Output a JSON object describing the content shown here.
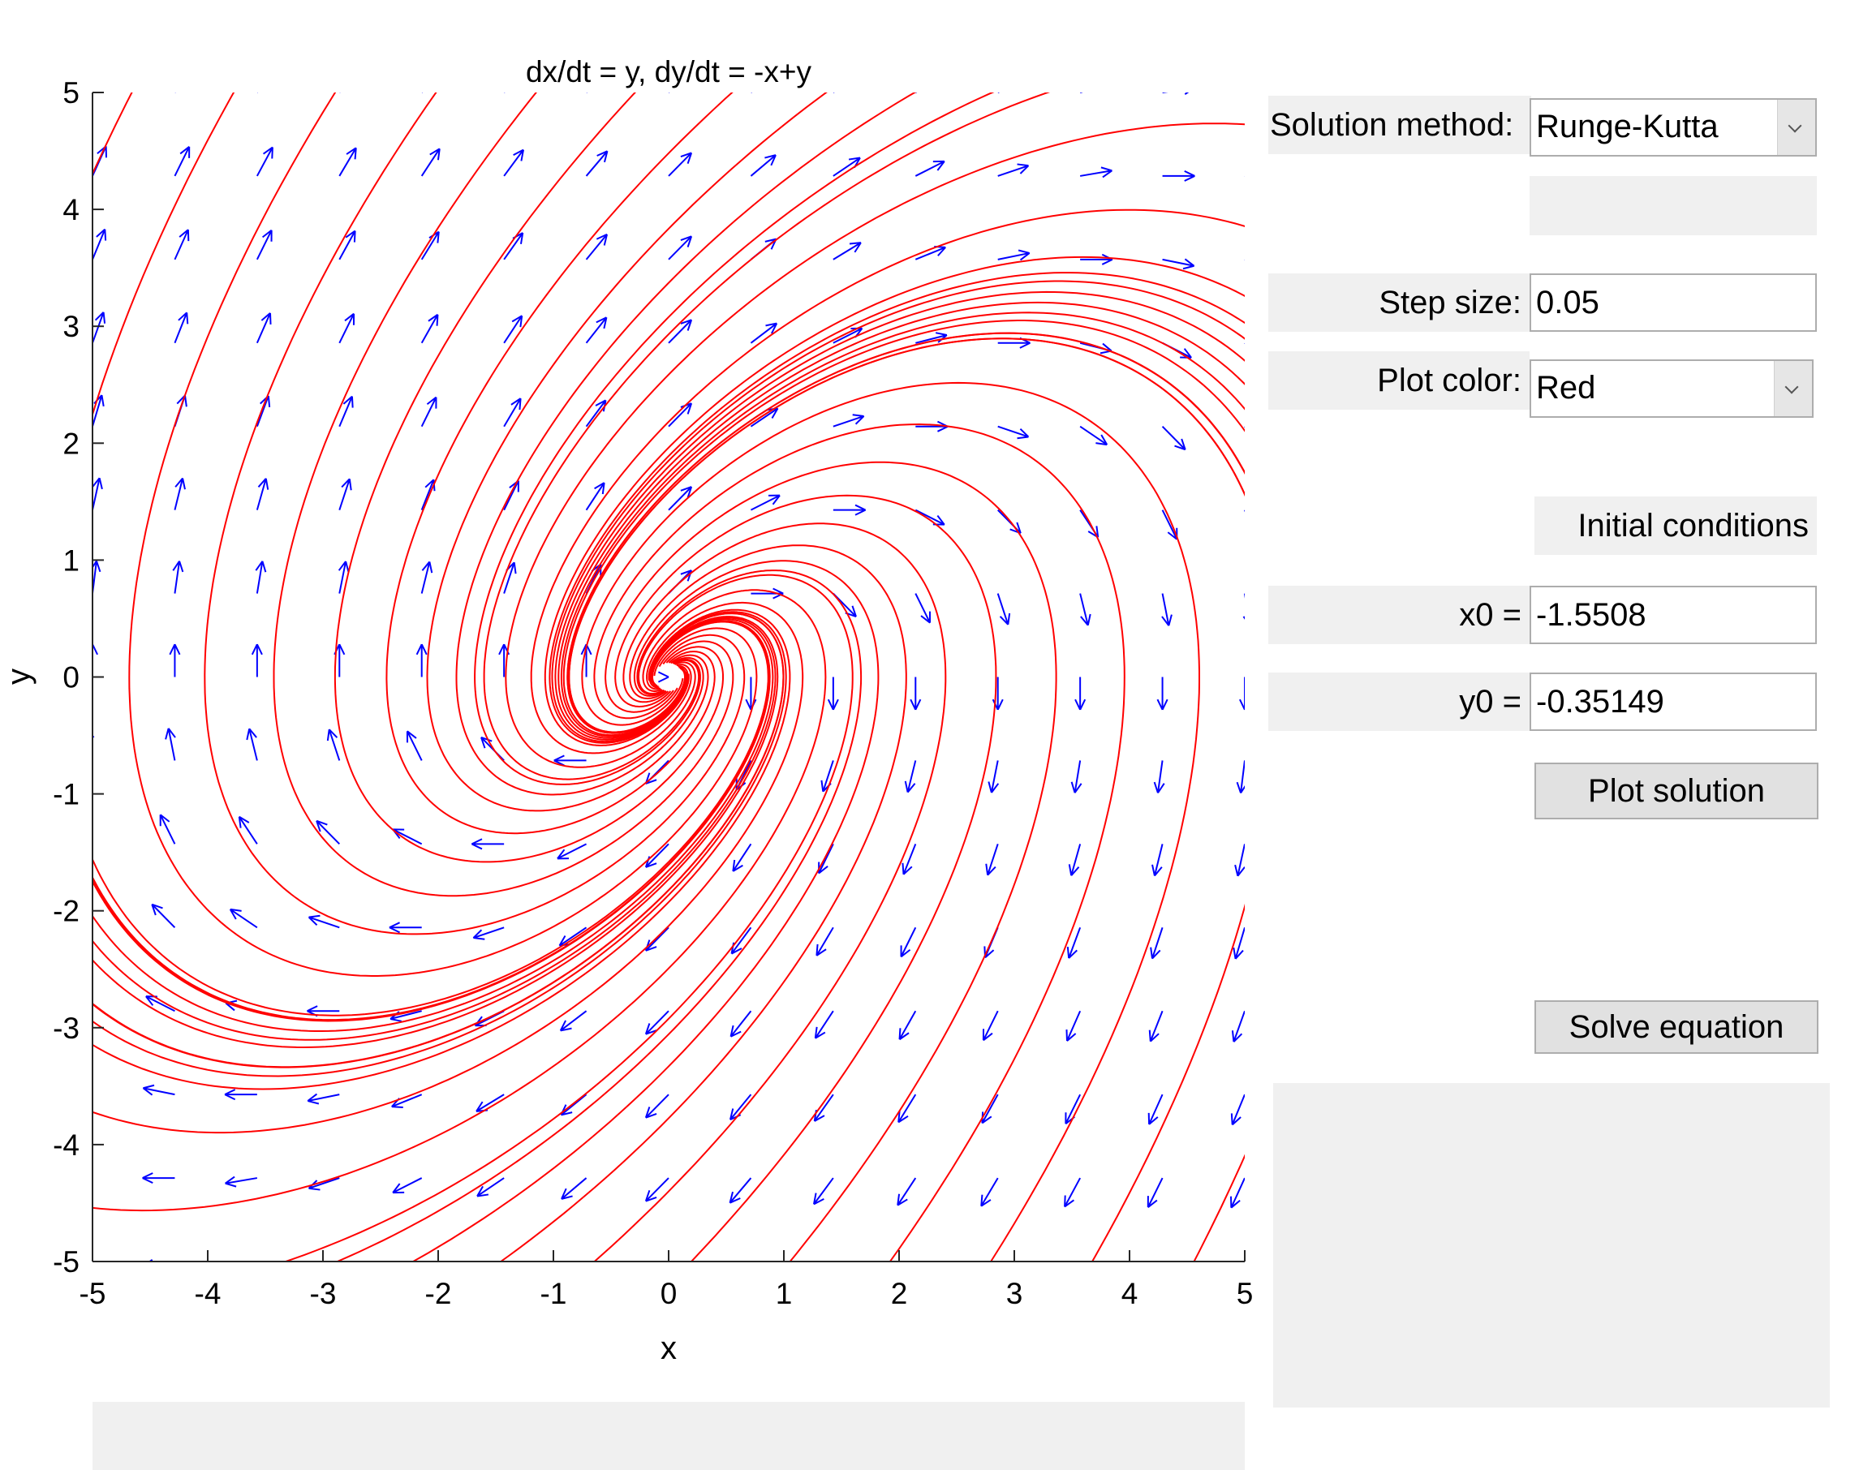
{
  "plot": {
    "title": "dx/dt = y, dy/dt = -x+y",
    "xlabel": "x",
    "ylabel": "y",
    "xlim": [
      -5,
      5
    ],
    "ylim": [
      -5,
      5
    ],
    "xticks": [
      "-5",
      "-4",
      "-3",
      "-2",
      "-1",
      "0",
      "1",
      "2",
      "3",
      "4",
      "5"
    ],
    "yticks": [
      "5",
      "4",
      "3",
      "2",
      "1",
      "0",
      "-1",
      "-2",
      "-3",
      "-4",
      "-5"
    ],
    "field_color": "#0000ff",
    "curve_color": "#ff0000"
  },
  "chart_data": {
    "type": "line",
    "title": "dx/dt = y, dy/dt = -x+y",
    "xlabel": "x",
    "ylabel": "y",
    "xlim": [
      -5,
      5
    ],
    "ylim": [
      -5,
      5
    ],
    "grid": false
  },
  "controls": {
    "method_label": "Solution method:",
    "method_value": "Runge-Kutta",
    "step_label": "Step size:",
    "step_value": "0.05",
    "color_label": "Plot color:",
    "color_value": "Red",
    "ic_label": "Initial conditions",
    "x0_label": "x0 =",
    "x0_value": "-1.5508",
    "y0_label": "y0 =",
    "y0_value": "-0.35149",
    "plot_button": "Plot solution",
    "solve_button": "Solve equation"
  },
  "icons": {
    "dropdown": "chevron-down-icon"
  }
}
